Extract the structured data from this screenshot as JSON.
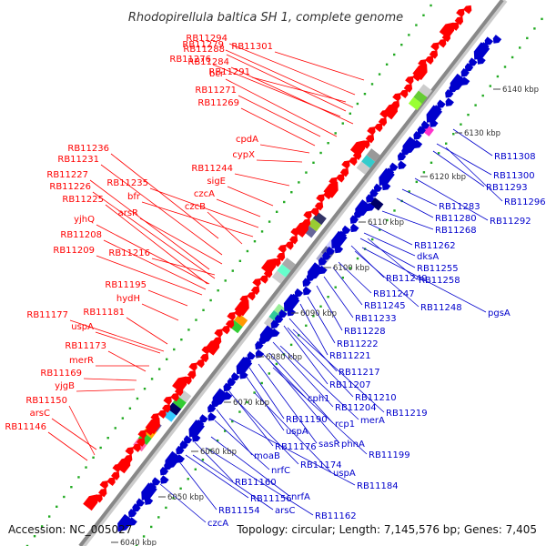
{
  "title": "Rhodopirellula baltica SH 1, complete genome",
  "accession": "Accession: NC_005027",
  "topology": "Topology: circular; Length: 7,145,576 bp; Genes: 7,405",
  "colors": {
    "forward": "#ff0000",
    "reverse": "#0000cc",
    "backbone": "#888888",
    "dots": "#22aa22"
  },
  "scale_ticks": [
    "6040 kbp",
    "6050 kbp",
    "6060 kbp",
    "6070 kbp",
    "6080 kbp",
    "6090 kbp",
    "6100 kbp",
    "6110 kbp",
    "6120 kbp",
    "6130 kbp",
    "6140 kbp"
  ],
  "forward_genes": [
    "RB11301",
    "RB11294",
    "RB11279",
    "RB11288",
    "RB11276",
    "RB11284",
    "RB11291",
    "bcr",
    "RB11271",
    "RB11269",
    "cpdA",
    "cypX",
    "RB11236",
    "RB11244",
    "RB11231",
    "sigE",
    "RB11227",
    "RB11235",
    "RB11226",
    "bfr",
    "czcA",
    "RB11225",
    "czcB",
    "arsR",
    "yjhQ",
    "RB11208",
    "RB11209",
    "RB11216",
    "RB11195",
    "hydH",
    "RB11177",
    "RB11181",
    "uspA",
    "RB11173",
    "merR",
    "RB11169",
    "yjgB",
    "RB11150",
    "arsC",
    "RB11146"
  ],
  "reverse_genes": [
    "RB11308",
    "RB11300",
    "RB11293",
    "RB11296",
    "RB11283",
    "RB11280",
    "RB11292",
    "RB11268",
    "RB11262",
    "dksA",
    "RB11255",
    "RB11249",
    "RB11258",
    "RB11247",
    "RB11245",
    "RB11248",
    "pgsA",
    "RB11233",
    "RB11228",
    "RB11222",
    "RB11221",
    "RB11217",
    "RB11207",
    "RB11210",
    "RB11204",
    "RB11219",
    "cph1",
    "rcp1",
    "merA",
    "RB11190",
    "uspA",
    "sasR",
    "phnA",
    "RB11176",
    "RB11199",
    "moaB",
    "RB11174",
    "uspA",
    "nrfC",
    "RB11184",
    "RB11160",
    "nrfA",
    "RB11156",
    "RB11154",
    "arsC",
    "RB11162",
    "czcA"
  ]
}
